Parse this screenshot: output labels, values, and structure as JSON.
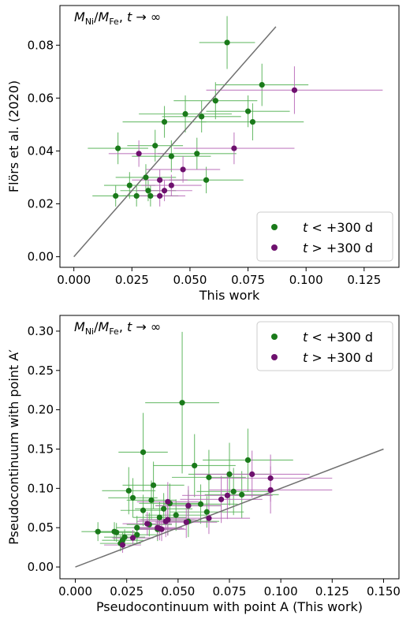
{
  "chart_data": [
    {
      "type": "scatter",
      "annotation": {
        "pre": "M",
        "sub1": "Ni",
        "mid": "/M",
        "sub2": "Fe",
        "post": ", t → ∞"
      },
      "xlabel": "This work",
      "ylabel": "Flörs et al. (2020)",
      "xlim": [
        -0.006,
        0.14
      ],
      "ylim": [
        -0.004,
        0.095
      ],
      "xticks": [
        0.0,
        0.025,
        0.05,
        0.075,
        0.1,
        0.125
      ],
      "xtick_labels": [
        "0.000",
        "0.025",
        "0.050",
        "0.075",
        "0.100",
        "0.125"
      ],
      "yticks": [
        0.0,
        0.02,
        0.04,
        0.06,
        0.08
      ],
      "ytick_labels": [
        "0.00",
        "0.02",
        "0.04",
        "0.06",
        "0.08"
      ],
      "legend": {
        "position": "lower-right",
        "entries": [
          {
            "pre": "t",
            "post": " < +300 d",
            "color": "#1a7a1a"
          },
          {
            "pre": "t",
            "post": " > +300 d",
            "color": "#6e116e"
          }
        ]
      },
      "line": {
        "x": [
          0.0,
          0.087
        ],
        "y": [
          0.0,
          0.087
        ],
        "color": "#707070"
      },
      "series": [
        {
          "color": "#1a7a1a",
          "errcolor": "#56b356",
          "points": [
            {
              "x": 0.066,
              "y": 0.081,
              "xerr": 0.012,
              "yerr": 0.01
            },
            {
              "x": 0.081,
              "y": 0.065,
              "xerr": 0.02,
              "yerr": 0.008
            },
            {
              "x": 0.061,
              "y": 0.059,
              "xerr": 0.018,
              "yerr": 0.007
            },
            {
              "x": 0.075,
              "y": 0.055,
              "xerr": 0.018,
              "yerr": 0.006
            },
            {
              "x": 0.048,
              "y": 0.054,
              "xerr": 0.02,
              "yerr": 0.007
            },
            {
              "x": 0.055,
              "y": 0.053,
              "xerr": 0.017,
              "yerr": 0.006
            },
            {
              "x": 0.039,
              "y": 0.051,
              "xerr": 0.018,
              "yerr": 0.006
            },
            {
              "x": 0.077,
              "y": 0.051,
              "xerr": 0.022,
              "yerr": 0.007
            },
            {
              "x": 0.035,
              "y": 0.042,
              "xerr": 0.012,
              "yerr": 0.006
            },
            {
              "x": 0.019,
              "y": 0.041,
              "xerr": 0.013,
              "yerr": 0.006
            },
            {
              "x": 0.053,
              "y": 0.039,
              "xerr": 0.017,
              "yerr": 0.006
            },
            {
              "x": 0.042,
              "y": 0.038,
              "xerr": 0.017,
              "yerr": 0.006
            },
            {
              "x": 0.031,
              "y": 0.03,
              "xerr": 0.013,
              "yerr": 0.005
            },
            {
              "x": 0.057,
              "y": 0.029,
              "xerr": 0.016,
              "yerr": 0.005
            },
            {
              "x": 0.024,
              "y": 0.027,
              "xerr": 0.011,
              "yerr": 0.005
            },
            {
              "x": 0.032,
              "y": 0.025,
              "xerr": 0.012,
              "yerr": 0.004
            },
            {
              "x": 0.018,
              "y": 0.023,
              "xerr": 0.01,
              "yerr": 0.004
            },
            {
              "x": 0.027,
              "y": 0.023,
              "xerr": 0.01,
              "yerr": 0.004
            },
            {
              "x": 0.033,
              "y": 0.023,
              "xerr": 0.012,
              "yerr": 0.004
            }
          ]
        },
        {
          "color": "#6e116e",
          "errcolor": "#b96ab9",
          "points": [
            {
              "x": 0.095,
              "y": 0.063,
              "xerr": 0.038,
              "yerr": 0.009
            },
            {
              "x": 0.069,
              "y": 0.041,
              "xerr": 0.026,
              "yerr": 0.006
            },
            {
              "x": 0.028,
              "y": 0.039,
              "xerr": 0.013,
              "yerr": 0.005
            },
            {
              "x": 0.047,
              "y": 0.033,
              "xerr": 0.016,
              "yerr": 0.005
            },
            {
              "x": 0.037,
              "y": 0.029,
              "xerr": 0.012,
              "yerr": 0.004
            },
            {
              "x": 0.042,
              "y": 0.027,
              "xerr": 0.013,
              "yerr": 0.004
            },
            {
              "x": 0.039,
              "y": 0.025,
              "xerr": 0.012,
              "yerr": 0.004
            },
            {
              "x": 0.037,
              "y": 0.023,
              "xerr": 0.011,
              "yerr": 0.004
            }
          ]
        }
      ]
    },
    {
      "type": "scatter",
      "annotation": {
        "pre": "M",
        "sub1": "Ni",
        "mid": "/M",
        "sub2": "Fe",
        "post": ", t → ∞"
      },
      "xlabel": "Pseudocontinuum with point A (This work)",
      "ylabel": "Pseudocontinuum with point A′",
      "xlim": [
        -0.0075,
        0.1575
      ],
      "ylim": [
        -0.015,
        0.32
      ],
      "xticks": [
        0.0,
        0.025,
        0.05,
        0.075,
        0.1,
        0.125,
        0.15
      ],
      "xtick_labels": [
        "0.000",
        "0.025",
        "0.050",
        "0.075",
        "0.100",
        "0.125",
        "0.150"
      ],
      "yticks": [
        0.0,
        0.05,
        0.1,
        0.15,
        0.2,
        0.25,
        0.3
      ],
      "ytick_labels": [
        "0.00",
        "0.05",
        "0.10",
        "0.15",
        "0.20",
        "0.25",
        "0.30"
      ],
      "legend": {
        "position": "upper-right",
        "entries": [
          {
            "pre": "t",
            "post": " < +300 d",
            "color": "#1a7a1a"
          },
          {
            "pre": "t",
            "post": " > +300 d",
            "color": "#6e116e"
          }
        ]
      },
      "line": {
        "x": [
          0.0,
          0.15
        ],
        "y": [
          0.0,
          0.15
        ],
        "color": "#707070"
      },
      "series": [
        {
          "color": "#1a7a1a",
          "errcolor": "#56b356",
          "points": [
            {
              "x": 0.052,
              "y": 0.209,
              "xerr": 0.018,
              "yerr": 0.09
            },
            {
              "x": 0.033,
              "y": 0.146,
              "xerr": 0.012,
              "yerr": 0.05
            },
            {
              "x": 0.084,
              "y": 0.136,
              "xerr": 0.022,
              "yerr": 0.04
            },
            {
              "x": 0.058,
              "y": 0.129,
              "xerr": 0.02,
              "yerr": 0.04
            },
            {
              "x": 0.075,
              "y": 0.118,
              "xerr": 0.02,
              "yerr": 0.04
            },
            {
              "x": 0.065,
              "y": 0.114,
              "xerr": 0.018,
              "yerr": 0.035
            },
            {
              "x": 0.038,
              "y": 0.104,
              "xerr": 0.015,
              "yerr": 0.03
            },
            {
              "x": 0.026,
              "y": 0.097,
              "xerr": 0.013,
              "yerr": 0.03
            },
            {
              "x": 0.077,
              "y": 0.096,
              "xerr": 0.018,
              "yerr": 0.03
            },
            {
              "x": 0.081,
              "y": 0.092,
              "xerr": 0.018,
              "yerr": 0.03
            },
            {
              "x": 0.028,
              "y": 0.088,
              "xerr": 0.012,
              "yerr": 0.025
            },
            {
              "x": 0.037,
              "y": 0.085,
              "xerr": 0.012,
              "yerr": 0.025
            },
            {
              "x": 0.046,
              "y": 0.081,
              "xerr": 0.015,
              "yerr": 0.025
            },
            {
              "x": 0.061,
              "y": 0.08,
              "xerr": 0.018,
              "yerr": 0.025
            },
            {
              "x": 0.055,
              "y": 0.078,
              "xerr": 0.016,
              "yerr": 0.02
            },
            {
              "x": 0.043,
              "y": 0.074,
              "xerr": 0.014,
              "yerr": 0.02
            },
            {
              "x": 0.033,
              "y": 0.072,
              "xerr": 0.011,
              "yerr": 0.02
            },
            {
              "x": 0.064,
              "y": 0.07,
              "xerr": 0.018,
              "yerr": 0.02
            },
            {
              "x": 0.049,
              "y": 0.066,
              "xerr": 0.015,
              "yerr": 0.02
            },
            {
              "x": 0.041,
              "y": 0.063,
              "xerr": 0.013,
              "yerr": 0.02
            },
            {
              "x": 0.045,
              "y": 0.06,
              "xerr": 0.013,
              "yerr": 0.02
            },
            {
              "x": 0.055,
              "y": 0.058,
              "xerr": 0.015,
              "yerr": 0.02
            },
            {
              "x": 0.036,
              "y": 0.054,
              "xerr": 0.011,
              "yerr": 0.015
            },
            {
              "x": 0.03,
              "y": 0.05,
              "xerr": 0.01,
              "yerr": 0.015
            },
            {
              "x": 0.04,
              "y": 0.048,
              "xerr": 0.011,
              "yerr": 0.015
            },
            {
              "x": 0.011,
              "y": 0.045,
              "xerr": 0.008,
              "yerr": 0.012
            },
            {
              "x": 0.019,
              "y": 0.045,
              "xerr": 0.01,
              "yerr": 0.012
            },
            {
              "x": 0.02,
              "y": 0.044,
              "xerr": 0.01,
              "yerr": 0.012
            },
            {
              "x": 0.03,
              "y": 0.041,
              "xerr": 0.01,
              "yerr": 0.012
            },
            {
              "x": 0.024,
              "y": 0.038,
              "xerr": 0.01,
              "yerr": 0.01
            },
            {
              "x": 0.023,
              "y": 0.034,
              "xerr": 0.01,
              "yerr": 0.01
            },
            {
              "x": 0.022,
              "y": 0.03,
              "xerr": 0.01,
              "yerr": 0.01
            }
          ]
        },
        {
          "color": "#6e116e",
          "errcolor": "#b96ab9",
          "points": [
            {
              "x": 0.086,
              "y": 0.118,
              "xerr": 0.028,
              "yerr": 0.03
            },
            {
              "x": 0.095,
              "y": 0.113,
              "xerr": 0.03,
              "yerr": 0.03
            },
            {
              "x": 0.095,
              "y": 0.098,
              "xerr": 0.03,
              "yerr": 0.03
            },
            {
              "x": 0.074,
              "y": 0.091,
              "xerr": 0.022,
              "yerr": 0.03
            },
            {
              "x": 0.071,
              "y": 0.086,
              "xerr": 0.02,
              "yerr": 0.03
            },
            {
              "x": 0.045,
              "y": 0.083,
              "xerr": 0.015,
              "yerr": 0.025
            },
            {
              "x": 0.055,
              "y": 0.078,
              "xerr": 0.016,
              "yerr": 0.025
            },
            {
              "x": 0.065,
              "y": 0.062,
              "xerr": 0.02,
              "yerr": 0.02
            },
            {
              "x": 0.045,
              "y": 0.06,
              "xerr": 0.014,
              "yerr": 0.02
            },
            {
              "x": 0.044,
              "y": 0.058,
              "xerr": 0.014,
              "yerr": 0.02
            },
            {
              "x": 0.054,
              "y": 0.057,
              "xerr": 0.015,
              "yerr": 0.02
            },
            {
              "x": 0.035,
              "y": 0.055,
              "xerr": 0.012,
              "yerr": 0.015
            },
            {
              "x": 0.04,
              "y": 0.05,
              "xerr": 0.012,
              "yerr": 0.015
            },
            {
              "x": 0.041,
              "y": 0.049,
              "xerr": 0.012,
              "yerr": 0.015
            },
            {
              "x": 0.042,
              "y": 0.048,
              "xerr": 0.012,
              "yerr": 0.015
            },
            {
              "x": 0.028,
              "y": 0.037,
              "xerr": 0.01,
              "yerr": 0.01
            },
            {
              "x": 0.023,
              "y": 0.028,
              "xerr": 0.009,
              "yerr": 0.01
            }
          ]
        }
      ]
    }
  ]
}
